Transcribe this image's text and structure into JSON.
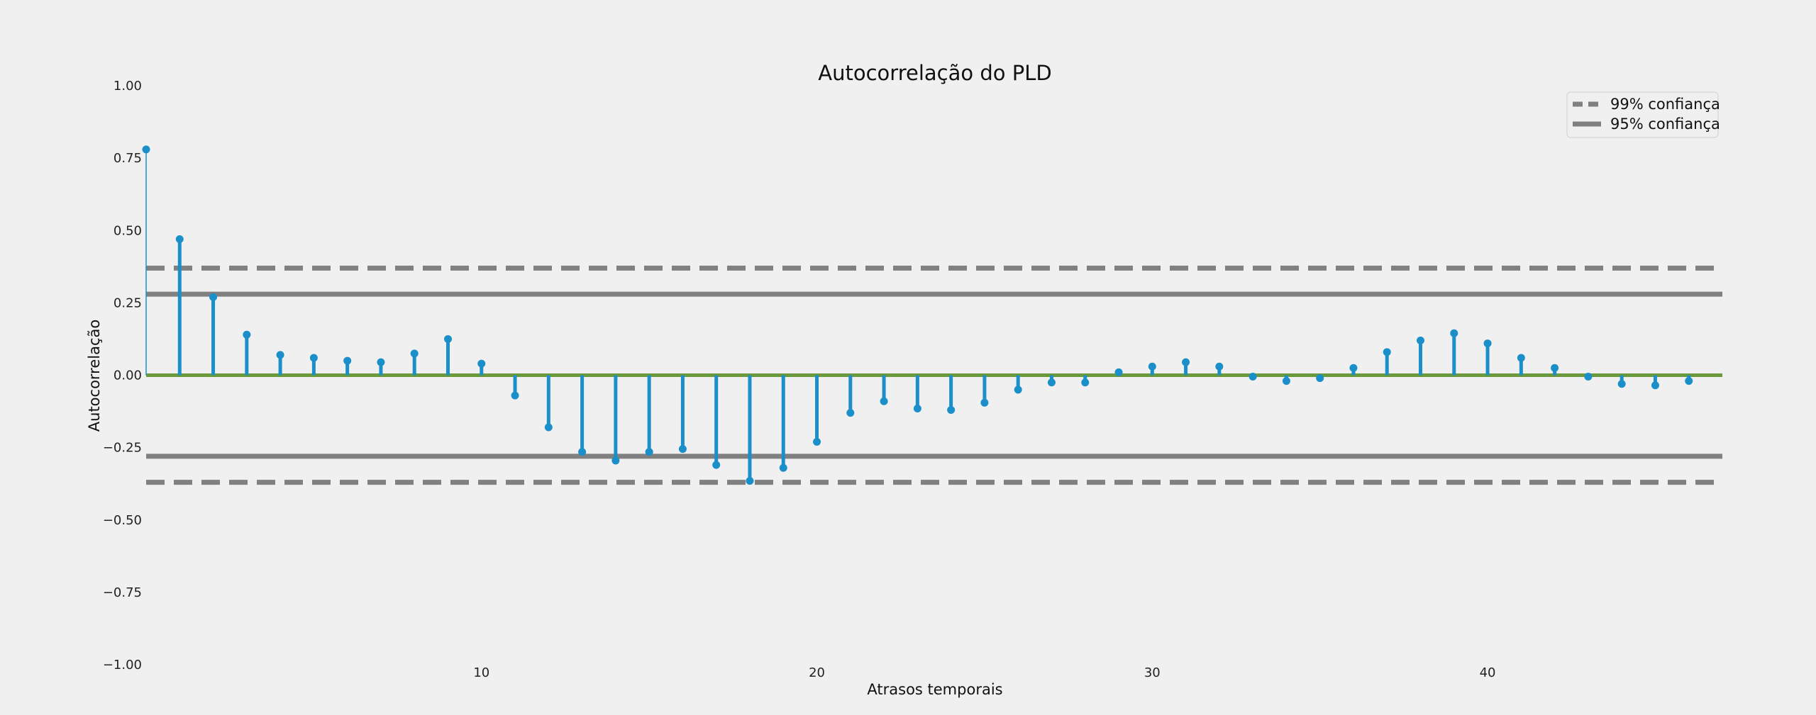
{
  "chart_data": {
    "type": "stem",
    "title": "Autocorrelação do PLD",
    "xlabel": "Atrasos temporais",
    "ylabel": "Autocorrelação",
    "xlim": [
      0,
      47
    ],
    "ylim": [
      -1.0,
      1.0
    ],
    "yticks": [
      1.0,
      0.75,
      0.5,
      0.25,
      0.0,
      -0.25,
      -0.5,
      -0.75,
      -1.0
    ],
    "ytick_labels": [
      "1.00",
      "0.75",
      "0.50",
      "0.25",
      "0.00",
      "−0.25",
      "−0.50",
      "−0.75",
      "−1.00"
    ],
    "xticks": [
      10,
      20,
      30,
      40
    ],
    "xtick_labels": [
      "10",
      "20",
      "30",
      "40"
    ],
    "grid": false,
    "legend_position": "top-right",
    "series": [
      {
        "x": [
          0,
          1,
          2,
          3,
          4,
          5,
          6,
          7,
          8,
          9,
          10,
          11,
          12,
          13,
          14,
          15,
          16,
          17,
          18,
          19,
          20,
          21,
          22,
          23,
          24,
          25,
          26,
          27,
          28,
          29,
          30,
          31,
          32,
          33,
          34,
          35,
          36,
          37,
          38,
          39,
          40,
          41,
          42,
          43,
          44,
          45,
          46
        ],
        "values": [
          0.78,
          0.47,
          0.27,
          0.14,
          0.07,
          0.06,
          0.05,
          0.045,
          0.075,
          0.125,
          0.04,
          -0.07,
          -0.18,
          -0.265,
          -0.295,
          -0.265,
          -0.255,
          -0.31,
          -0.365,
          -0.32,
          -0.23,
          -0.13,
          -0.09,
          -0.115,
          -0.12,
          -0.095,
          -0.05,
          -0.025,
          -0.025,
          0.01,
          0.03,
          0.045,
          0.03,
          -0.005,
          -0.02,
          -0.01,
          0.025,
          0.08,
          0.12,
          0.145,
          0.11,
          0.06,
          0.025,
          -0.005,
          -0.03,
          -0.035,
          -0.02
        ]
      }
    ],
    "reference_lines": [
      {
        "name": "99% confiança",
        "values": [
          0.37,
          -0.37
        ],
        "style": "dashed"
      },
      {
        "name": "95% confiança",
        "values": [
          0.28,
          -0.28
        ],
        "style": "solid"
      }
    ],
    "colors": {
      "stem": "#1a8fc9",
      "reference": "#808080",
      "zero_line": "#6b9a3c",
      "background": "#f0f0f0"
    }
  }
}
